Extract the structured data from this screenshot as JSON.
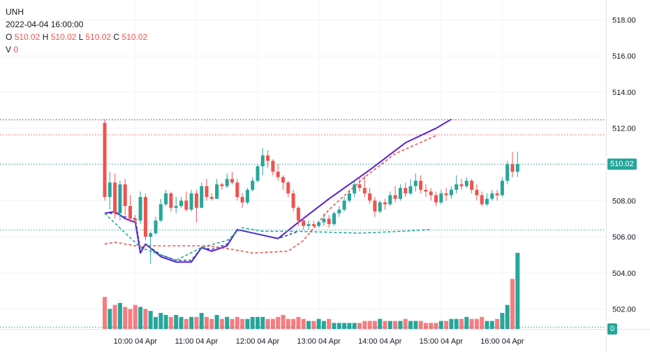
{
  "legend": {
    "symbol": "UNH",
    "datetime": "2022-04-04 16:00:00",
    "open_label": "O",
    "open": "510.02",
    "high_label": "H",
    "high": "510.02",
    "low_label": "L",
    "low": "510.02",
    "close_label": "C",
    "close": "510.02",
    "volume_label": "V",
    "volume": "0"
  },
  "badges": {
    "last_price": "510.02",
    "volume": "0"
  },
  "colors": {
    "up": "#26a69a",
    "down": "#ef5350",
    "up_vol": "#26a69a",
    "down_vol": "#f77c80",
    "purple": "#5b1fd0",
    "blue": "#3949ab",
    "grid": "#f0f3fa",
    "text": "#131722"
  },
  "chart_data": {
    "type": "candlestick",
    "title": "UNH",
    "y_axis": {
      "ticks": [
        "502.00",
        "504.00",
        "506.00",
        "508.00",
        "510.00",
        "512.00",
        "514.00",
        "516.00",
        "518.00"
      ],
      "ylim": [
        500.9,
        519.1
      ],
      "position": "right"
    },
    "x_axis": {
      "ticks": [
        "10:00 04 Apr",
        "11:00 04 Apr",
        "12:00 04 Apr",
        "13:00 04 Apr",
        "14:00 04 Apr",
        "15:00 04 Apr",
        "16:00 04 Apr"
      ],
      "bars_per_hour": 12,
      "first_bar_time": "09:30"
    },
    "candles": [
      [
        512.3,
        512.5,
        508.0,
        508.2
      ],
      [
        508.2,
        509.6,
        507.5,
        509.0
      ],
      [
        509.0,
        509.5,
        507.0,
        507.3
      ],
      [
        507.3,
        509.1,
        506.9,
        508.9
      ],
      [
        508.9,
        509.2,
        507.2,
        507.7
      ],
      [
        507.7,
        508.3,
        506.8,
        507.0
      ],
      [
        507.0,
        507.2,
        506.6,
        506.9
      ],
      [
        506.9,
        508.5,
        506.7,
        508.2
      ],
      [
        508.2,
        508.4,
        505.8,
        506.0
      ],
      [
        506.0,
        506.3,
        504.5,
        506.2
      ],
      [
        506.2,
        507.1,
        506.1,
        506.9
      ],
      [
        506.9,
        508.1,
        506.8,
        507.8
      ],
      [
        507.8,
        508.6,
        507.7,
        508.4
      ],
      [
        508.4,
        508.5,
        507.4,
        507.6
      ],
      [
        507.6,
        508.2,
        507.3,
        507.7
      ],
      [
        507.7,
        508.2,
        507.6,
        508.0
      ],
      [
        508.0,
        508.5,
        507.4,
        507.5
      ],
      [
        507.5,
        508.6,
        507.4,
        508.4
      ],
      [
        508.4,
        508.6,
        506.8,
        507.6
      ],
      [
        507.6,
        509.0,
        507.6,
        508.8
      ],
      [
        508.8,
        509.2,
        508.0,
        508.2
      ],
      [
        508.2,
        508.4,
        508.0,
        508.1
      ],
      [
        508.1,
        509.2,
        508.1,
        508.9
      ],
      [
        508.9,
        509.0,
        508.6,
        508.8
      ],
      [
        508.8,
        509.5,
        508.7,
        509.2
      ],
      [
        509.2,
        509.6,
        508.9,
        509.0
      ],
      [
        509.0,
        509.2,
        508.0,
        508.2
      ],
      [
        508.2,
        508.4,
        507.6,
        507.9
      ],
      [
        507.9,
        508.7,
        507.8,
        508.6
      ],
      [
        508.6,
        509.3,
        508.5,
        509.1
      ],
      [
        509.1,
        510.0,
        509.0,
        509.9
      ],
      [
        509.9,
        510.9,
        509.4,
        510.5
      ],
      [
        510.5,
        510.8,
        509.8,
        510.2
      ],
      [
        510.2,
        510.3,
        509.4,
        509.6
      ],
      [
        509.6,
        510.0,
        509.1,
        509.3
      ],
      [
        509.3,
        509.4,
        508.6,
        509.0
      ],
      [
        509.0,
        509.1,
        508.2,
        508.4
      ],
      [
        508.4,
        508.6,
        507.4,
        507.6
      ],
      [
        507.6,
        507.7,
        506.6,
        506.9
      ],
      [
        506.9,
        507.1,
        506.4,
        506.6
      ],
      [
        506.6,
        506.9,
        506.4,
        506.7
      ],
      [
        506.7,
        506.9,
        506.5,
        506.6
      ],
      [
        506.6,
        506.9,
        506.5,
        506.8
      ],
      [
        506.8,
        507.3,
        506.6,
        507.0
      ],
      [
        507.0,
        507.2,
        506.5,
        506.7
      ],
      [
        506.7,
        507.4,
        506.6,
        507.3
      ],
      [
        507.3,
        507.7,
        507.1,
        507.5
      ],
      [
        507.5,
        508.2,
        507.4,
        508.0
      ],
      [
        508.0,
        508.6,
        507.9,
        508.4
      ],
      [
        508.4,
        509.1,
        508.2,
        508.9
      ],
      [
        508.9,
        509.3,
        508.5,
        508.7
      ],
      [
        508.7,
        509.4,
        508.2,
        508.4
      ],
      [
        508.4,
        508.7,
        507.8,
        508.0
      ],
      [
        508.0,
        508.2,
        507.1,
        507.4
      ],
      [
        507.4,
        508.0,
        507.3,
        507.9
      ],
      [
        507.9,
        508.1,
        507.5,
        507.8
      ],
      [
        507.8,
        508.5,
        507.7,
        508.3
      ],
      [
        508.3,
        508.8,
        507.9,
        508.1
      ],
      [
        508.1,
        508.9,
        508.0,
        508.7
      ],
      [
        508.7,
        509.0,
        508.2,
        508.4
      ],
      [
        508.4,
        509.2,
        508.3,
        508.8
      ],
      [
        508.8,
        509.5,
        508.5,
        509.1
      ],
      [
        509.1,
        509.4,
        508.4,
        508.6
      ],
      [
        508.6,
        508.9,
        508.2,
        508.5
      ],
      [
        508.5,
        508.7,
        508.0,
        508.3
      ],
      [
        508.3,
        508.5,
        507.7,
        507.9
      ],
      [
        507.9,
        508.6,
        507.8,
        508.4
      ],
      [
        508.4,
        508.7,
        508.0,
        508.3
      ],
      [
        508.3,
        508.8,
        508.1,
        508.6
      ],
      [
        508.6,
        509.4,
        508.4,
        508.9
      ],
      [
        508.9,
        509.2,
        508.6,
        508.8
      ],
      [
        508.8,
        509.3,
        508.7,
        509.1
      ],
      [
        509.1,
        509.2,
        508.4,
        508.6
      ],
      [
        508.6,
        508.9,
        508.0,
        508.3
      ],
      [
        508.3,
        508.5,
        507.7,
        507.8
      ],
      [
        507.8,
        508.4,
        507.7,
        508.1
      ],
      [
        508.1,
        508.6,
        508.0,
        508.4
      ],
      [
        508.4,
        508.6,
        508.0,
        508.3
      ],
      [
        508.3,
        509.3,
        508.2,
        509.1
      ],
      [
        509.1,
        510.2,
        508.9,
        510.0
      ],
      [
        510.0,
        510.7,
        509.3,
        509.6
      ],
      [
        509.6,
        510.7,
        509.3,
        510.02
      ]
    ],
    "volume": {
      "scale_max": 30,
      "values": [
        16,
        10,
        12,
        13,
        11,
        10,
        12,
        11,
        10,
        9,
        6,
        8,
        7,
        6,
        7,
        6,
        5,
        6,
        6,
        8,
        6,
        5,
        7,
        5,
        6,
        5,
        6,
        5,
        5,
        6,
        6,
        6,
        5,
        5,
        6,
        7,
        5,
        5,
        6,
        5,
        4,
        4,
        5,
        4,
        5,
        3,
        3,
        3,
        3,
        3,
        3,
        4,
        4,
        4,
        5,
        4,
        4,
        4,
        4,
        5,
        4,
        4,
        4,
        3,
        3,
        3,
        4,
        4,
        5,
        5,
        5,
        6,
        5,
        5,
        6,
        4,
        4,
        5,
        8,
        12,
        25,
        38
      ]
    },
    "horizontal_lines": [
      {
        "price": 512.47,
        "color": "#5b1fd0",
        "style": "dotted"
      },
      {
        "price": 511.64,
        "color": "#ef5350",
        "style": "dotted"
      },
      {
        "price": 510.02,
        "color": "#26a69a",
        "style": "dotted"
      },
      {
        "price": 506.38,
        "color": "#26a69a",
        "style": "dotted"
      },
      {
        "price": 501.0,
        "color": "#26a69a",
        "style": "dotted"
      }
    ],
    "overlays": [
      {
        "name": "purple",
        "color": "#5b1fd0",
        "style": "solid",
        "points": [
          [
            0,
            507.3
          ],
          [
            2,
            507.4
          ],
          [
            4,
            507.0
          ],
          [
            6,
            506.8
          ],
          [
            7,
            505.1
          ],
          [
            8,
            505.6
          ],
          [
            11,
            504.9
          ],
          [
            14,
            504.6
          ],
          [
            17,
            504.6
          ],
          [
            19,
            505.4
          ],
          [
            21,
            505.2
          ],
          [
            24,
            505.5
          ],
          [
            26,
            506.4
          ],
          [
            34,
            505.9
          ],
          [
            38,
            506.8
          ],
          [
            44,
            508.1
          ],
          [
            52,
            509.7
          ],
          [
            59,
            511.2
          ],
          [
            65,
            512.0
          ],
          [
            68,
            512.5
          ]
        ]
      },
      {
        "name": "blue_dashed",
        "color": "#3949ab",
        "style": "dashed",
        "points": [
          [
            0,
            507.3
          ],
          [
            2,
            507.3
          ],
          [
            4,
            507.1
          ],
          [
            6,
            507.0
          ],
          [
            7,
            505.3
          ],
          [
            8,
            505.6
          ],
          [
            11,
            505.0
          ],
          [
            14,
            504.7
          ],
          [
            17,
            504.7
          ],
          [
            19,
            505.4
          ],
          [
            21,
            505.3
          ],
          [
            24,
            505.6
          ],
          [
            26,
            506.4
          ],
          [
            34,
            505.9
          ],
          [
            38,
            506.3
          ]
        ]
      },
      {
        "name": "green_dashed",
        "color": "#26a69a",
        "style": "dashed",
        "points": [
          [
            0,
            507.3
          ],
          [
            7,
            505.4
          ],
          [
            14,
            504.7
          ],
          [
            19,
            505.4
          ],
          [
            24,
            505.8
          ],
          [
            27,
            506.5
          ],
          [
            31,
            506.3
          ],
          [
            38,
            506.3
          ],
          [
            50,
            506.2
          ],
          [
            58,
            506.3
          ],
          [
            64,
            506.4
          ]
        ]
      },
      {
        "name": "red_dashed",
        "color": "#ef5350",
        "style": "dashed",
        "points": [
          [
            0,
            505.6
          ],
          [
            2,
            505.7
          ],
          [
            6,
            505.5
          ],
          [
            20,
            505.5
          ],
          [
            25,
            505.3
          ],
          [
            29,
            505.1
          ],
          [
            36,
            505.2
          ],
          [
            39,
            505.8
          ],
          [
            44,
            507.5
          ],
          [
            51,
            509.3
          ],
          [
            57,
            510.6
          ],
          [
            65,
            511.6
          ]
        ]
      }
    ]
  }
}
